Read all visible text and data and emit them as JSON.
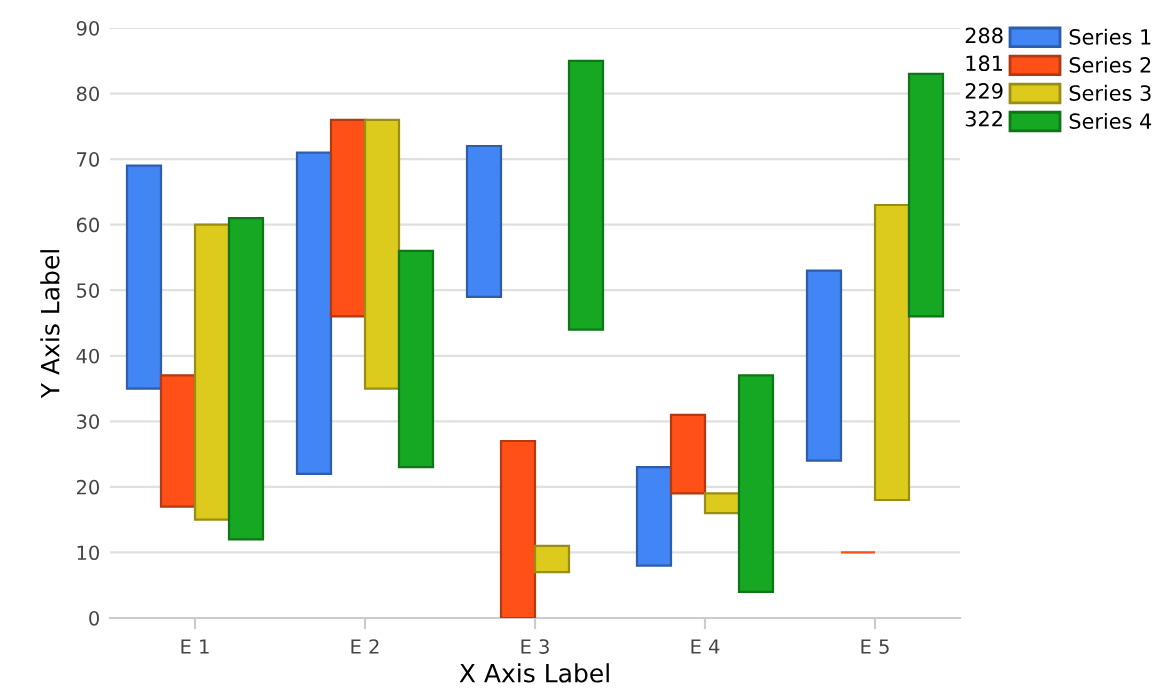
{
  "chart_data": {
    "type": "bar",
    "xlabel": "X Axis Label",
    "ylabel": "Y Axis Label",
    "categories": [
      "E 1",
      "E 2",
      "E 3",
      "E 4",
      "E 5"
    ],
    "series": [
      {
        "name": "Series 1",
        "color": "#4285f4",
        "base": [
          35,
          22,
          49,
          8,
          24
        ],
        "values": [
          34,
          49,
          23,
          15,
          29
        ]
      },
      {
        "name": "Series 2",
        "color": "#ff5117",
        "base": [
          17,
          46,
          0,
          19,
          10
        ],
        "values": [
          20,
          30,
          27,
          12,
          0
        ]
      },
      {
        "name": "Series 3",
        "color": "#dcca1d",
        "base": [
          15,
          35,
          7,
          16,
          18
        ],
        "values": [
          45,
          41,
          4,
          3,
          45
        ]
      },
      {
        "name": "Series 4",
        "color": "#16a823",
        "base": [
          12,
          23,
          44,
          4,
          46
        ],
        "values": [
          49,
          33,
          41,
          33,
          37
        ]
      }
    ],
    "annotations": [
      "288",
      "181",
      "229",
      "322"
    ],
    "ylim": [
      0,
      90
    ],
    "yticks": [
      0,
      10,
      20,
      30,
      40,
      50,
      60,
      70,
      80,
      90
    ],
    "grid": "y",
    "legend": "top right"
  }
}
